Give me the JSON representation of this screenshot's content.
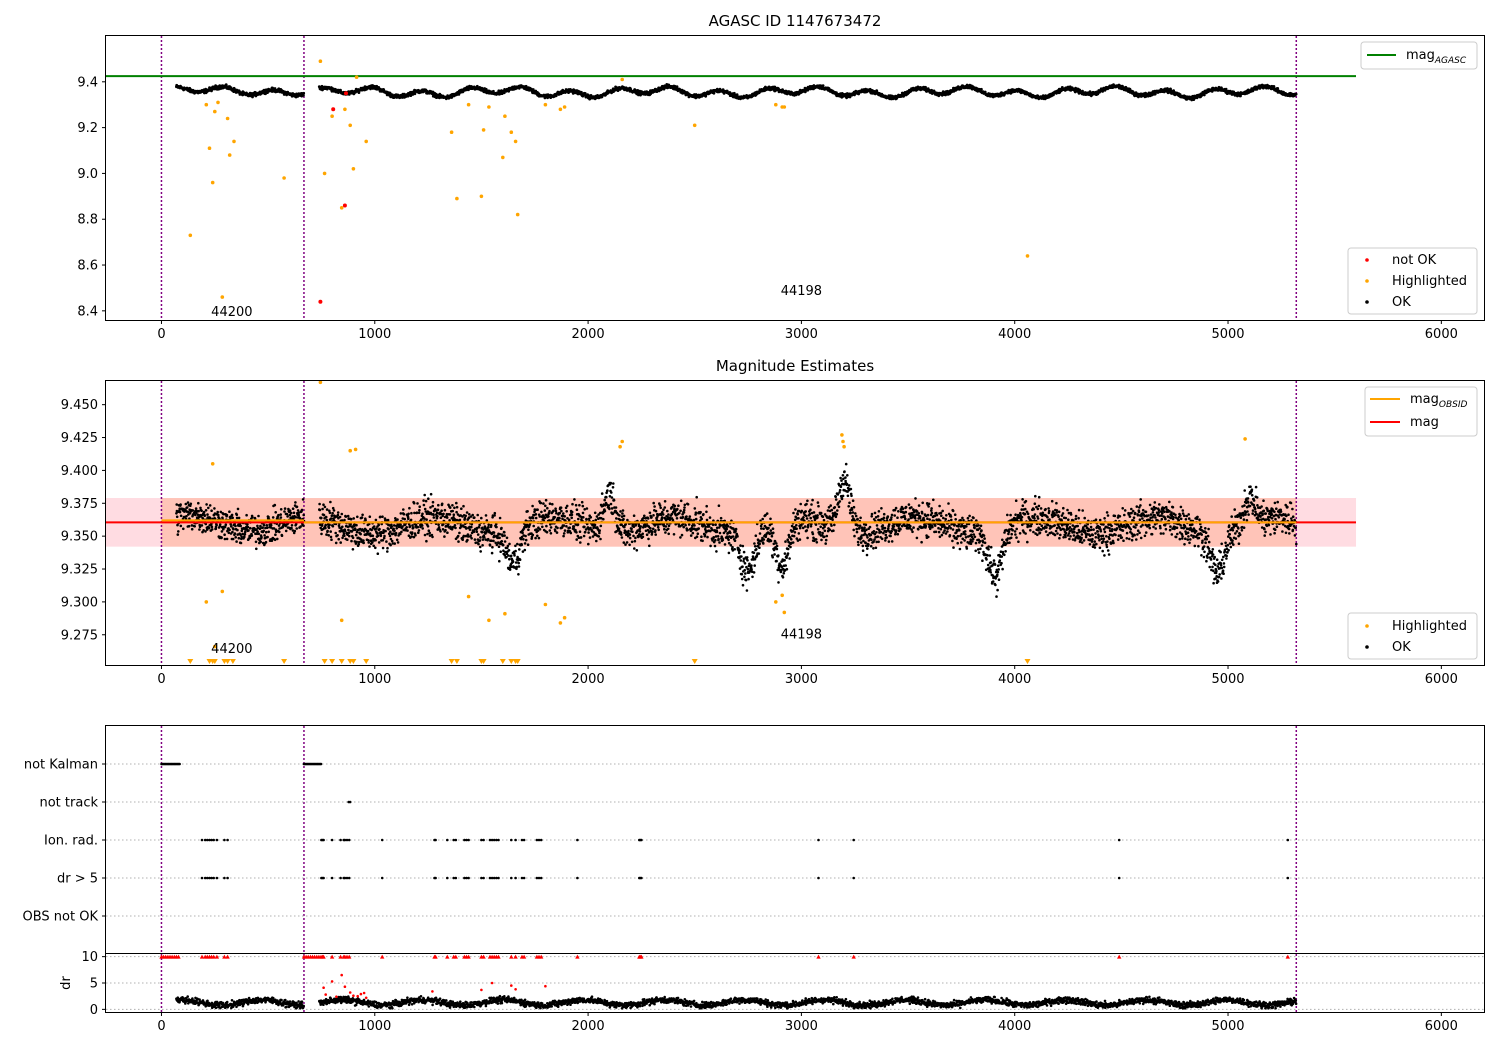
{
  "figure": {
    "title": "AGASC ID 1147673472"
  },
  "colors": {
    "ok": "#000000",
    "highlighted": "#ffa500",
    "not_ok": "#ff0000",
    "agasc_line": "#008000",
    "obsid_line": "#ffa500",
    "mag_line": "#ff0000",
    "obs_boundary": "#800080",
    "mag_band": "#ffc0cb",
    "obs_band": "#ffa07a"
  },
  "chart_data": [
    {
      "type": "scatter",
      "title": "",
      "xlabel": "",
      "ylabel": "",
      "xlim": [
        -260,
        6200
      ],
      "ylim": [
        8.36,
        9.6
      ],
      "xticks": [
        0,
        1000,
        2000,
        3000,
        4000,
        5000,
        6000
      ],
      "xtick_labels": [
        "0",
        "1000",
        "2000",
        "3000",
        "4000",
        "5000",
        "6000"
      ],
      "yticks": [
        8.4,
        8.6,
        8.8,
        9.0,
        9.2,
        9.4
      ],
      "ytick_labels": [
        "8.4",
        "8.6",
        "8.8",
        "9.0",
        "9.2",
        "9.4"
      ],
      "obs_boundaries": [
        0,
        668,
        5320
      ],
      "observation_labels": [
        {
          "text": "44200",
          "x": 330,
          "y": 8.4
        },
        {
          "text": "44198",
          "x": 3000,
          "y": 8.49
        }
      ],
      "reference_lines": [
        {
          "name": "mag_AGASC",
          "y": 9.425,
          "x_range": [
            -260,
            5600
          ]
        }
      ],
      "ok_series": {
        "name": "OK",
        "segments": [
          {
            "x_range": [
              70,
              668
            ],
            "level": 9.36,
            "wiggle": 0.03
          },
          {
            "x_range": [
              740,
              5320
            ],
            "level": 9.355,
            "wiggle": 0.035
          }
        ]
      },
      "series": [
        {
          "name": "not OK",
          "x": [
            745,
            805,
            860,
            865
          ],
          "y": [
            8.44,
            9.28,
            8.86,
            9.35
          ]
        },
        {
          "name": "Highlighted",
          "x": [
            135,
            210,
            225,
            240,
            250,
            265,
            285,
            310,
            320,
            340,
            575,
            745,
            765,
            800,
            845,
            860,
            885,
            900,
            915,
            960,
            1360,
            1385,
            1440,
            1500,
            1510,
            1535,
            1600,
            1610,
            1640,
            1660,
            1670,
            1800,
            1870,
            1890,
            2160,
            2500,
            2880,
            2910,
            2920,
            4060
          ],
          "y": [
            8.73,
            9.3,
            9.11,
            8.96,
            9.27,
            9.31,
            8.46,
            9.24,
            9.08,
            9.14,
            8.98,
            9.49,
            9.0,
            9.25,
            8.85,
            9.28,
            9.21,
            9.02,
            9.42,
            9.14,
            9.18,
            8.89,
            9.3,
            8.9,
            9.19,
            9.29,
            9.07,
            9.25,
            9.18,
            9.14,
            8.82,
            9.3,
            9.28,
            9.29,
            9.41,
            9.21,
            9.3,
            9.29,
            9.29,
            8.64
          ]
        }
      ],
      "legend_top": {
        "position": "upper right",
        "entries": [
          {
            "label": "mag",
            "subscript": "AGASC"
          }
        ]
      },
      "legend_bottom": {
        "position": "lower right",
        "entries": [
          "not OK",
          "Highlighted",
          "OK"
        ]
      }
    },
    {
      "type": "scatter",
      "title": "Magnitude Estimates",
      "xlabel": "",
      "ylabel": "",
      "xlim": [
        -260,
        6200
      ],
      "ylim": [
        9.252,
        9.468
      ],
      "xticks": [
        0,
        1000,
        2000,
        3000,
        4000,
        5000,
        6000
      ],
      "xtick_labels": [
        "0",
        "1000",
        "2000",
        "3000",
        "4000",
        "5000",
        "6000"
      ],
      "yticks": [
        9.275,
        9.3,
        9.325,
        9.35,
        9.375,
        9.4,
        9.425,
        9.45
      ],
      "ytick_labels": [
        "9.275",
        "9.300",
        "9.325",
        "9.350",
        "9.375",
        "9.400",
        "9.425",
        "9.450"
      ],
      "obs_boundaries": [
        0,
        668,
        5320
      ],
      "observation_labels": [
        {
          "text": "44200",
          "x": 330,
          "y": 9.265
        },
        {
          "text": "44198",
          "x": 3000,
          "y": 9.276
        }
      ],
      "reference_lines": [
        {
          "name": "mag",
          "y": 9.3605,
          "x_range": [
            -260,
            5600
          ]
        },
        {
          "name": "mag_OBSID",
          "segments": [
            {
              "x_range": [
                0,
                668
              ],
              "y": 9.362
            },
            {
              "x_range": [
                668,
                5320
              ],
              "y": 9.3605
            }
          ]
        }
      ],
      "bands": [
        {
          "name": "mag band",
          "y_range": [
            9.342,
            9.379
          ],
          "x_range": [
            -260,
            5600
          ]
        },
        {
          "name": "mag_OBSID band",
          "y_range": [
            9.342,
            9.379
          ],
          "x_range": [
            0,
            5320
          ]
        }
      ],
      "ok_series": {
        "name": "OK",
        "segments": [
          {
            "x_range": [
              70,
              668
            ],
            "level": 9.36,
            "spread": 0.018
          },
          {
            "x_range": [
              740,
              5320
            ],
            "level": 9.358,
            "spread": 0.02
          }
        ],
        "dips": [
          {
            "x": 1650,
            "depth": 0.025
          },
          {
            "x": 2750,
            "depth": 0.03
          },
          {
            "x": 2910,
            "depth": 0.035
          },
          {
            "x": 3910,
            "depth": 0.035
          },
          {
            "x": 4950,
            "depth": 0.03
          }
        ],
        "peaks": [
          {
            "x": 2100,
            "height": 0.03
          },
          {
            "x": 3200,
            "height": 0.04
          },
          {
            "x": 5100,
            "height": 0.02
          }
        ]
      },
      "series": [
        {
          "name": "Highlighted",
          "x": [
            210,
            240,
            250,
            285,
            745,
            845,
            885,
            910,
            1440,
            1535,
            1610,
            1800,
            1870,
            1890,
            2150,
            2160,
            2910,
            2920,
            2880,
            3190,
            3195,
            3200,
            5080
          ],
          "y": [
            9.3,
            9.405,
            9.266,
            9.308,
            9.467,
            9.286,
            9.415,
            9.416,
            9.304,
            9.286,
            9.291,
            9.298,
            9.284,
            9.288,
            9.418,
            9.422,
            9.305,
            9.292,
            9.3,
            9.427,
            9.422,
            9.418,
            9.424
          ]
        }
      ],
      "out_of_range_markers": {
        "name": "Highlighted below axis",
        "x": [
          135,
          225,
          240,
          250,
          295,
          310,
          335,
          575,
          765,
          800,
          845,
          885,
          900,
          960,
          1360,
          1385,
          1500,
          1510,
          1600,
          1640,
          1660,
          1670,
          2500,
          4060
        ]
      },
      "legend_top": {
        "position": "upper right",
        "entries": [
          {
            "label": "mag",
            "subscript": "OBSID"
          },
          {
            "label": "mag",
            "subscript": ""
          }
        ]
      },
      "legend_bottom": {
        "position": "lower right",
        "entries": [
          "Highlighted",
          "OK"
        ]
      }
    },
    {
      "type": "scatter",
      "title": "",
      "xlabel": "",
      "ylabel": "",
      "xlim": [
        -260,
        6200
      ],
      "categories": [
        "not Kalman",
        "not track",
        "Ion. rad.",
        "dr > 5",
        "OBS not OK"
      ],
      "obs_boundaries": [
        0,
        668,
        5320
      ],
      "flags": {
        "not Kalman": {
          "x_ranges": [
            [
              0,
              85
            ],
            [
              668,
              750
            ]
          ]
        },
        "not track": {
          "x": [
            878,
            885
          ]
        },
        "Ion. rad.": {
          "x": [
            190,
            205,
            215,
            225,
            235,
            245,
            260,
            295,
            310,
            750,
            755,
            760,
            800,
            840,
            855,
            860,
            870,
            880,
            1035,
            1280,
            1285,
            1340,
            1370,
            1380,
            1420,
            1430,
            1440,
            1500,
            1510,
            1540,
            1550,
            1560,
            1570,
            1580,
            1640,
            1660,
            1690,
            1700,
            1760,
            1770,
            1780,
            1950,
            2240,
            2245,
            2250,
            3080,
            3245,
            4490,
            5280
          ]
        },
        "dr > 5": {
          "x": [
            190,
            205,
            215,
            225,
            235,
            245,
            260,
            295,
            310,
            750,
            755,
            760,
            800,
            840,
            855,
            860,
            870,
            880,
            1035,
            1280,
            1285,
            1340,
            1370,
            1380,
            1420,
            1430,
            1440,
            1500,
            1510,
            1540,
            1550,
            1560,
            1570,
            1580,
            1640,
            1660,
            1690,
            1700,
            1760,
            1770,
            1780,
            1950,
            2240,
            2245,
            2250,
            3080,
            3245,
            4490,
            5280
          ]
        },
        "OBS not OK": {
          "x": []
        }
      }
    },
    {
      "type": "scatter",
      "title": "",
      "xlabel": "",
      "ylabel": "dr",
      "xlim": [
        -260,
        6200
      ],
      "ylim": [
        -0.5,
        10.5
      ],
      "yticks": [
        0,
        5,
        10
      ],
      "ytick_labels": [
        "0",
        "5",
        "10"
      ],
      "xticks": [
        0,
        1000,
        2000,
        3000,
        4000,
        5000,
        6000
      ],
      "xtick_labels": [
        "0",
        "1000",
        "2000",
        "3000",
        "4000",
        "5000",
        "6000"
      ],
      "obs_boundaries": [
        0,
        668,
        5320
      ],
      "ok_series": {
        "name": "OK",
        "segments": [
          {
            "x_range": [
              70,
              668
            ],
            "level": 1.3,
            "spread": 0.9
          },
          {
            "x_range": [
              740,
              5320
            ],
            "level": 1.3,
            "spread": 0.9
          }
        ]
      },
      "series": [
        {
          "name": "not OK",
          "x": [
            760,
            770,
            800,
            820,
            845,
            860,
            885,
            900,
            920,
            935,
            950,
            960,
            1270,
            1500,
            1550,
            1640,
            1660,
            1800
          ],
          "y": [
            4.1,
            2.8,
            5.3,
            2.4,
            6.5,
            4.3,
            3.2,
            2.6,
            2.5,
            2.9,
            3.1,
            2.2,
            3.4,
            3.7,
            5.0,
            4.5,
            3.8,
            4.4
          ]
        },
        {
          "name": "not OK (clipped)",
          "x": [
            0,
            10,
            20,
            30,
            40,
            50,
            60,
            70,
            80,
            190,
            205,
            215,
            225,
            235,
            245,
            260,
            295,
            310,
            668,
            678,
            688,
            698,
            708,
            718,
            728,
            738,
            748,
            755,
            760,
            800,
            840,
            855,
            860,
            870,
            880,
            1035,
            1280,
            1285,
            1340,
            1370,
            1380,
            1420,
            1430,
            1440,
            1500,
            1510,
            1540,
            1550,
            1560,
            1570,
            1580,
            1640,
            1660,
            1690,
            1700,
            1760,
            1770,
            1780,
            1950,
            2240,
            2245,
            2250,
            3080,
            3245,
            4490,
            5280
          ],
          "y": 10
        }
      ]
    }
  ]
}
